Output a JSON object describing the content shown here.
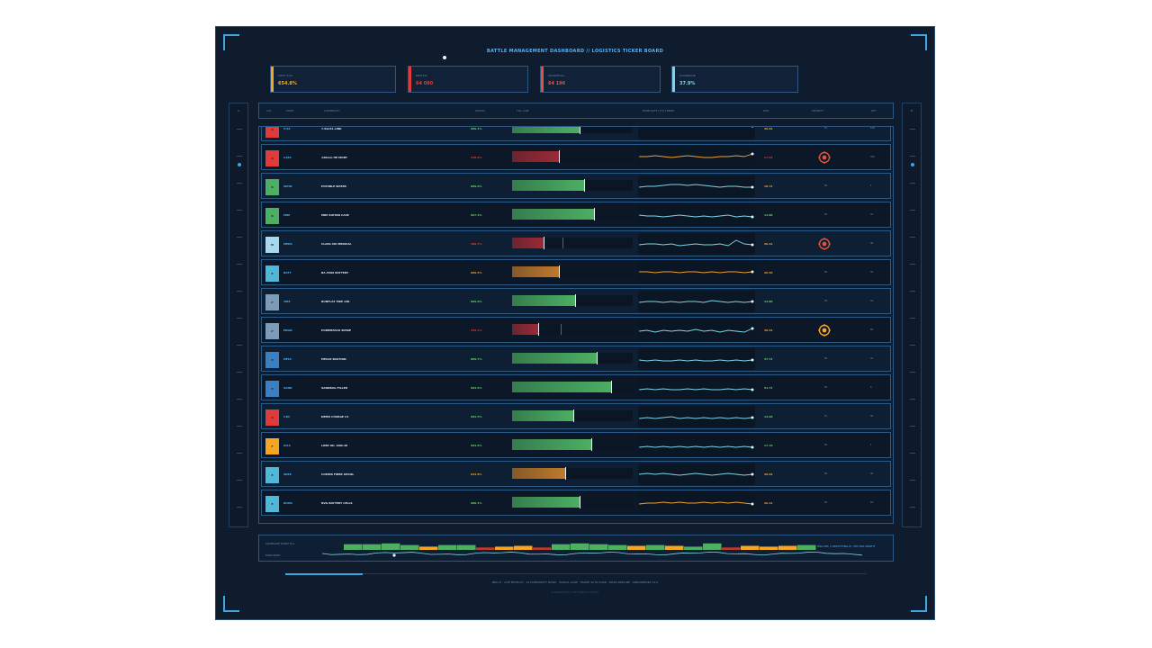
{
  "title": "BATTLE MANAGEMENT DASHBOARD // LOGISTICS TICKER BOARD",
  "kpis": [
    {
      "label": "FORT FILL",
      "value": "654.8%",
      "color": "#f5a623"
    },
    {
      "label": "DEFICIT",
      "value": "64 090",
      "color": "#e03b3b"
    },
    {
      "label": "SHORTFALL",
      "value": "64 196",
      "color": "#e0533b"
    },
    {
      "label": "COVERAGE",
      "value": "37.9%",
      "color": "#7fd3e6"
    }
  ],
  "rail_left_label": "A",
  "rail_right_label": "B",
  "headers": {
    "cls": "CLS",
    "code": "CODE",
    "commodity": "COMMODITY",
    "status": "STATUS",
    "fill": "FILL LINE",
    "burn": "BURN RATE (7D) TREND",
    "dos": "DOS",
    "priority": "PRIORITY",
    "qty": "QTY"
  },
  "rows": [
    {
      "cls": "A",
      "cls_color": "#e03b3b",
      "code": "5.56",
      "name": "7.62x51 LINK",
      "pct": "999.4%",
      "pct_color": "#6ed36e",
      "fill": 0.56,
      "fill_color": "#4caf62",
      "mark": null,
      "spark_color": "#f0a030",
      "spark": [
        7,
        6,
        6,
        5,
        5,
        4,
        4,
        4,
        3,
        3,
        3,
        2,
        3,
        5,
        9
      ],
      "days": "30.82",
      "days_color": "#f5a623",
      "priority": "P1",
      "alert": null,
      "qty": "108"
    },
    {
      "cls": "A",
      "cls_color": "#e03b3b",
      "code": "A105",
      "name": "120mm HE MORT",
      "pct": "318.6%",
      "pct_color": "#e03b3b",
      "fill": 0.39,
      "fill_color": "#9c2a35",
      "mark": null,
      "spark_color": "#f0a030",
      "spark": [
        11,
        11,
        10,
        11,
        12,
        11,
        10,
        11,
        12,
        12,
        11,
        11,
        10,
        11,
        8
      ],
      "days": "17.64",
      "days_color": "#e03b3b",
      "priority": "",
      "alert": "#e0533b",
      "qty": "305"
    },
    {
      "cls": "R",
      "cls_color": "#4caf62",
      "code": "WATR",
      "name": "POTABLE WATER",
      "pct": "899.9%",
      "pct_color": "#6ed36e",
      "fill": 0.6,
      "fill_color": "#4caf62",
      "mark": null,
      "spark_color": "#7fd3e6",
      "spark": [
        13,
        12,
        12,
        11,
        10,
        10,
        11,
        10,
        11,
        12,
        13,
        12,
        12,
        13,
        13
      ],
      "days": "18.74",
      "days_color": "#f5a623",
      "priority": "P2",
      "alert": null,
      "qty": "1"
    },
    {
      "cls": "R",
      "cls_color": "#4caf62",
      "code": "MRE",
      "name": "MRE RATION CASE",
      "pct": "967.3%",
      "pct_color": "#6ed36e",
      "fill": 0.68,
      "fill_color": "#4caf62",
      "mark": null,
      "spark_color": "#7fd3e6",
      "spark": [
        12,
        13,
        13,
        14,
        13,
        12,
        13,
        14,
        13,
        14,
        13,
        12,
        14,
        13,
        14
      ],
      "days": "14.80",
      "days_color": "#6ed36e",
      "priority": "P3",
      "alert": null,
      "qty": "31"
    },
    {
      "cls": "M",
      "cls_color": "#a8d8f0",
      "code": "MEDS",
      "name": "CLASS VIII MEDICAL",
      "pct": "480.7%",
      "pct_color": "#e03b3b",
      "fill": 0.26,
      "fill_color": "#9c2a35",
      "mark": 0.42,
      "spark_color": "#7fd3e6",
      "spark": [
        13,
        12,
        12,
        13,
        12,
        14,
        13,
        12,
        13,
        13,
        12,
        14,
        8,
        12,
        13
      ],
      "days": "20.42",
      "days_color": "#f5a623",
      "priority": "",
      "alert": "#e0533b",
      "qty": "40"
    },
    {
      "cls": "E",
      "cls_color": "#4fb8d8",
      "code": "BATT",
      "name": "BA-5590 BATTERY",
      "pct": "609.5%",
      "pct_color": "#f5a623",
      "fill": 0.39,
      "fill_color": "#c07a2a",
      "mark": null,
      "spark_color": "#f0a030",
      "spark": [
        11,
        11,
        12,
        11,
        11,
        12,
        11,
        11,
        12,
        11,
        12,
        11,
        11,
        12,
        11
      ],
      "days": "26.50",
      "days_color": "#f5a623",
      "priority": "P2",
      "alert": null,
      "qty": "34"
    },
    {
      "cls": "P",
      "cls_color": "#7c9bb8",
      "code": "TIRE",
      "name": "RUNFLAT TIRE 14R",
      "pct": "995.9%",
      "pct_color": "#6ed36e",
      "fill": 0.52,
      "fill_color": "#4caf62",
      "mark": null,
      "spark_color": "#7fd3e6",
      "spark": [
        13,
        12,
        12,
        13,
        12,
        13,
        12,
        12,
        13,
        11,
        12,
        13,
        12,
        13,
        12
      ],
      "days": "14.80",
      "days_color": "#6ed36e",
      "priority": "P3",
      "alert": null,
      "qty": "31"
    },
    {
      "cls": "P",
      "cls_color": "#7c9bb8",
      "code": "ENGN",
      "name": "POWERPACK SPARE",
      "pct": "335.1%",
      "pct_color": "#e03b3b",
      "fill": 0.22,
      "fill_color": "#9c2a35",
      "mark": 0.4,
      "spark_color": "#7fd3e6",
      "spark": [
        13,
        12,
        14,
        12,
        13,
        12,
        13,
        11,
        13,
        12,
        14,
        12,
        13,
        14,
        10
      ],
      "days": "30.54",
      "days_color": "#f5a623",
      "priority": "",
      "alert": "#f5a623",
      "qty": "83"
    },
    {
      "cls": "E",
      "cls_color": "#3a7fc1",
      "code": "HESC",
      "name": "HESCO BASTION",
      "pct": "869.7%",
      "pct_color": "#6ed36e",
      "fill": 0.7,
      "fill_color": "#4caf62",
      "mark": null,
      "spark_color": "#7fd3e6",
      "spark": [
        13,
        14,
        13,
        14,
        14,
        13,
        14,
        13,
        14,
        14,
        13,
        14,
        13,
        14,
        13
      ],
      "days": "37.74",
      "days_color": "#6ed36e",
      "priority": "P2",
      "alert": null,
      "qty": "41"
    },
    {
      "cls": "E",
      "cls_color": "#3a7fc1",
      "code": "SAND",
      "name": "SANDBAG FILLED",
      "pct": "993.6%",
      "pct_color": "#6ed36e",
      "fill": 0.82,
      "fill_color": "#4caf62",
      "mark": null,
      "spark_color": "#7fd3e6",
      "spark": [
        14,
        13,
        14,
        13,
        14,
        14,
        13,
        14,
        13,
        14,
        14,
        13,
        14,
        13,
        14
      ],
      "days": "51.74",
      "days_color": "#6ed36e",
      "priority": "P3",
      "alert": null,
      "qty": "6"
    },
    {
      "cls": "A",
      "cls_color": "#e03b3b",
      "code": "C4N",
      "name": "DEMO CHARGE C4",
      "pct": "993.5%",
      "pct_color": "#6ed36e",
      "fill": 0.51,
      "fill_color": "#4caf62",
      "mark": null,
      "spark_color": "#7fd3e6",
      "spark": [
        14,
        13,
        14,
        13,
        12,
        14,
        13,
        14,
        13,
        14,
        13,
        14,
        13,
        14,
        13
      ],
      "days": "14.60",
      "days_color": "#6ed36e",
      "priority": "P1",
      "alert": null,
      "qty": "30"
    },
    {
      "cls": "F",
      "cls_color": "#f5a623",
      "code": "OILS",
      "name": "LUBE OIL 10W-40",
      "pct": "994.9%",
      "pct_color": "#6ed36e",
      "fill": 0.66,
      "fill_color": "#4caf62",
      "mark": null,
      "spark_color": "#7fd3e6",
      "spark": [
        14,
        13,
        14,
        13,
        14,
        13,
        14,
        13,
        14,
        13,
        14,
        13,
        14,
        13,
        14
      ],
      "days": "17.70",
      "days_color": "#6ed36e",
      "priority": "P2",
      "alert": null,
      "qty": "1"
    },
    {
      "cls": "E",
      "cls_color": "#4fb8d8",
      "code": "WIRE",
      "name": "COMMS FIBER SPOOL",
      "pct": "843.8%",
      "pct_color": "#f5a623",
      "fill": 0.44,
      "fill_color": "#c07a2a",
      "mark": null,
      "spark_color": "#7fd3e6",
      "spark": [
        12,
        11,
        12,
        11,
        12,
        13,
        12,
        11,
        12,
        13,
        12,
        11,
        12,
        13,
        12
      ],
      "days": "28.82",
      "days_color": "#f5a623",
      "priority": "P2",
      "alert": null,
      "qty": "44"
    },
    {
      "cls": "E",
      "cls_color": "#4fb8d8",
      "code": "ROOD",
      "name": "NVG BATTERY CELLS",
      "pct": "986.4%",
      "pct_color": "#6ed36e",
      "fill": 0.56,
      "fill_color": "#4caf62",
      "mark": null,
      "spark_color": "#f0a030",
      "spark": [
        13,
        12,
        12,
        11,
        12,
        11,
        12,
        12,
        11,
        12,
        11,
        12,
        11,
        12,
        13
      ],
      "days": "26.14",
      "days_color": "#f5a623",
      "priority": "P3",
      "alert": null,
      "qty": "22"
    }
  ],
  "bottom": {
    "label1": "AGGREGATE SUPPLY FILL",
    "label2": "BURN INDEX",
    "right_text": "BRA BTL // DEPOTTING B / SECTOR NORTH",
    "bars": [
      0.7,
      0.7,
      0.8,
      0.6,
      0.4,
      0.6,
      0.6,
      0.3,
      0.4,
      0.5,
      0.3,
      0.7,
      0.8,
      0.7,
      0.6,
      0.5,
      0.6,
      0.5,
      0.4,
      0.8,
      0.3,
      0.5,
      0.4,
      0.5,
      0.6
    ],
    "bar_colors": [
      "#4caf62",
      "#4caf62",
      "#4caf62",
      "#4caf62",
      "#f5a623",
      "#4caf62",
      "#4caf62",
      "#c0392b",
      "#f5a623",
      "#f5a623",
      "#c0392b",
      "#4caf62",
      "#4caf62",
      "#4caf62",
      "#4caf62",
      "#f5a623",
      "#4caf62",
      "#f5a623",
      "#4caf62",
      "#4caf62",
      "#c0392b",
      "#f5a623",
      "#f5a623",
      "#f5a623",
      "#4caf62"
    ]
  },
  "footer1": "BRA LF · LIVE FROM GT · 14 COMMODITY ROWS · SCROLL LOOP · FRAME 30 FA CORR · BLUE+REDLINE · ANODIZED/RT v3.0",
  "footer2": "CLASSIFICATION // FOR TRAINING USE ONLY"
}
